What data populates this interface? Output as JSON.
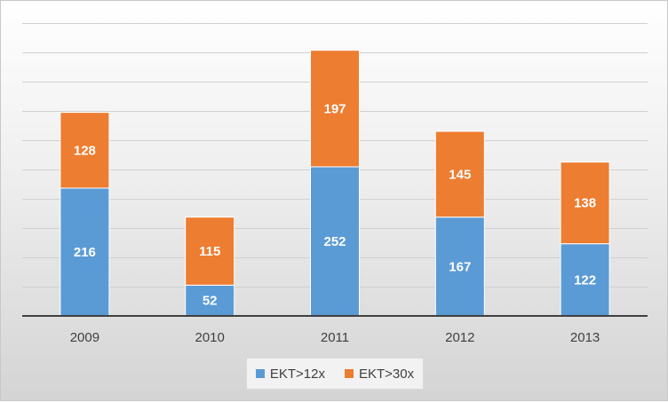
{
  "chart_data": {
    "type": "bar",
    "stacked": true,
    "categories": [
      "2009",
      "2010",
      "2011",
      "2012",
      "2013"
    ],
    "series": [
      {
        "name": "EKT>12x",
        "values": [
          216,
          52,
          252,
          167,
          122
        ],
        "color": "#5b9bd5"
      },
      {
        "name": "EKT>30x",
        "values": [
          128,
          115,
          197,
          145,
          138
        ],
        "color": "#ed7d31"
      }
    ],
    "ylim": [
      0,
      495
    ],
    "ytick_step": 49.5,
    "grid": true,
    "legend_position": "bottom"
  }
}
